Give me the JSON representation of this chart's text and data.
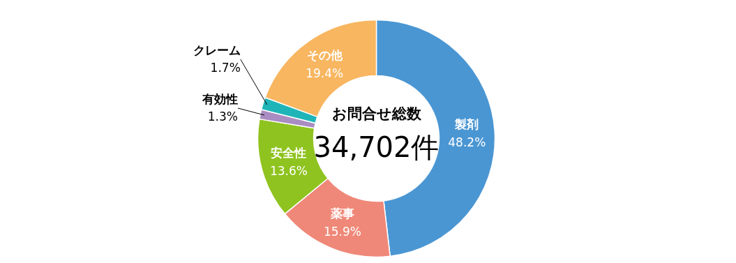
{
  "chart_data": {
    "type": "donut",
    "title": "お問合せ総数",
    "categories": [
      "製剤",
      "薬事",
      "安全性",
      "有効性",
      "クレーム",
      "その他"
    ],
    "values": [
      48.2,
      15.9,
      13.6,
      1.3,
      1.7,
      19.4
    ],
    "value_labels": [
      "48.2%",
      "15.9%",
      "13.6%",
      "1.3%",
      "1.7%",
      "19.4%"
    ],
    "colors": [
      "#4a96d3",
      "#ef8878",
      "#8fc31f",
      "#a98dc2",
      "#1fb5b8",
      "#f8b660"
    ],
    "annotations": [
      "34,702件"
    ]
  }
}
